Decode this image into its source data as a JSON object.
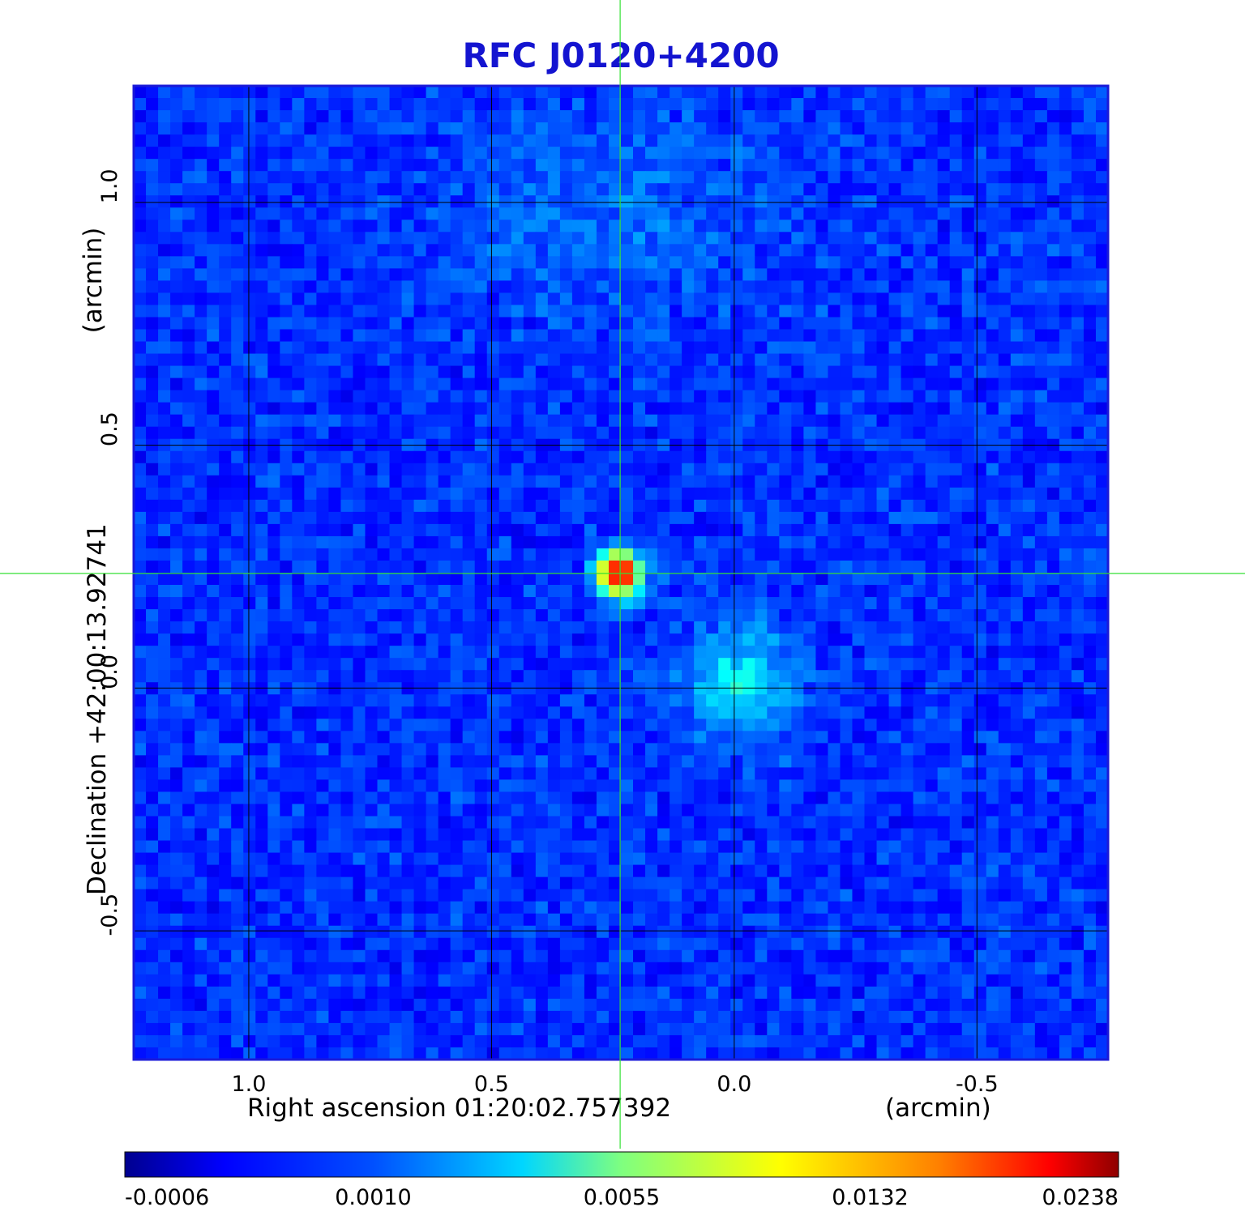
{
  "chart_data": {
    "type": "heatmap",
    "title": "RFC J0120+4200",
    "xlabel": "Right ascension  01:20:02.757392",
    "x_unit": "(arcmin)",
    "ylabel": "Declination  +42:00:13.92741",
    "y_unit": "(arcmin)",
    "x_ticks": [
      {
        "value": 1.0,
        "label": "1.0"
      },
      {
        "value": 0.5,
        "label": "0.5"
      },
      {
        "value": 0.0,
        "label": "0.0"
      },
      {
        "value": -0.5,
        "label": "-0.5"
      }
    ],
    "y_ticks": [
      {
        "value": 1.0,
        "label": "1.0"
      },
      {
        "value": 0.5,
        "label": "0.5"
      },
      {
        "value": 0.0,
        "label": "0.0"
      },
      {
        "value": -0.5,
        "label": "-0.5"
      }
    ],
    "xlim": [
      1.237,
      -0.77
    ],
    "ylim": [
      -0.765,
      1.24
    ],
    "grid": true,
    "colormap": "jet",
    "colorbar": {
      "labels": [
        "-0.0006",
        "0.0010",
        "0.0055",
        "0.0132",
        "0.0238"
      ]
    },
    "sources": [
      {
        "x": 0.235,
        "y": 0.236,
        "peak": 0.0238
      },
      {
        "x": -0.01,
        "y": 0.01,
        "peak": 0.005
      }
    ],
    "crosshair": {
      "x": 0.235,
      "y": 0.236,
      "color": "#35e035"
    }
  }
}
